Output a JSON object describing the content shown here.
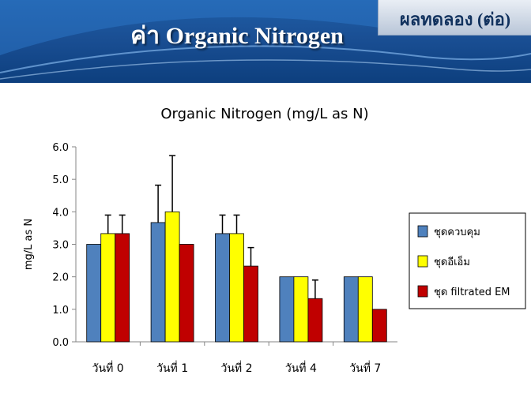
{
  "header": {
    "title": "ค่า Organic Nitrogen",
    "tag": "ผลทดลอง (ต่อ)"
  },
  "colors": {
    "banner": "#1a4f94",
    "series": [
      "#4f81bd",
      "#ffff00",
      "#c00000"
    ]
  },
  "chart_data": {
    "type": "bar",
    "title": "Organic Nitrogen (mg/L as N)",
    "xlabel": "",
    "ylabel": "mg/L as N",
    "ylim": [
      0,
      6
    ],
    "yticks": [
      "0.0",
      "1.0",
      "2.0",
      "3.0",
      "4.0",
      "5.0",
      "6.0"
    ],
    "categories": [
      "วันที่ 0",
      "วันที่ 1",
      "วันที่ 2",
      "วันที่ 4",
      "วันที่ 7"
    ],
    "series": [
      {
        "name": "ชุดควบคุม",
        "color": "#4f81bd",
        "values": [
          3.0,
          3.67,
          3.33,
          2.0,
          2.0
        ],
        "error_high": [
          3.0,
          4.82,
          3.9,
          2.0,
          2.0
        ]
      },
      {
        "name": "ชุดอีเอ็ม",
        "color": "#ffff00",
        "values": [
          3.33,
          4.0,
          3.33,
          2.0,
          2.0
        ],
        "error_high": [
          3.9,
          5.73,
          3.9,
          2.0,
          2.0
        ]
      },
      {
        "name": "ชุด filtrated EM",
        "color": "#c00000",
        "values": [
          3.33,
          3.0,
          2.33,
          1.33,
          1.0
        ],
        "error_high": [
          3.9,
          3.0,
          2.9,
          1.9,
          1.0
        ]
      }
    ],
    "legend": "right",
    "grid": false
  }
}
